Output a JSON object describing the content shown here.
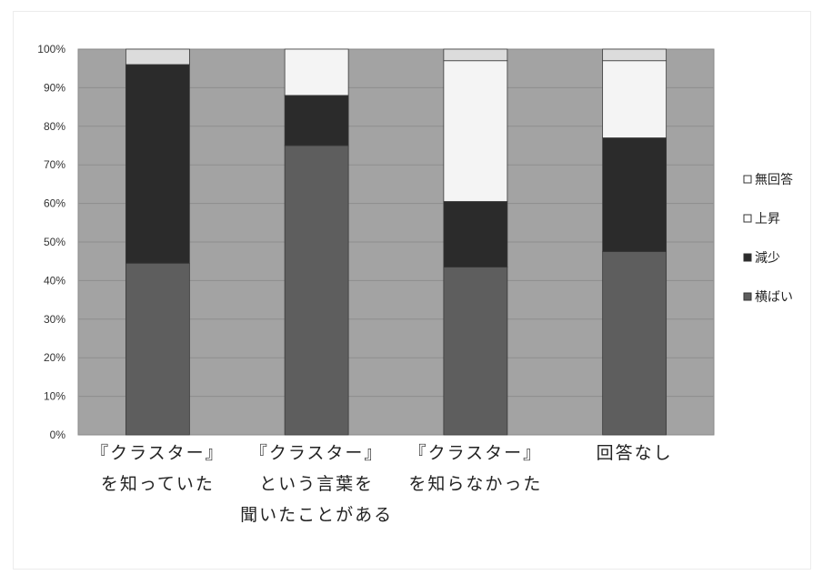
{
  "chart_data": {
    "type": "bar",
    "stacked": true,
    "categories": [
      [
        "『クラスター』",
        "を知っていた"
      ],
      [
        "『クラスター』",
        "という言葉を",
        "聞いたことがある"
      ],
      [
        "『クラスター』",
        "を知らなかった"
      ],
      [
        "回答なし"
      ]
    ],
    "series": [
      {
        "name": "横ばい",
        "color": "#5e5e5e",
        "values": [
          44.5,
          75.0,
          43.5,
          47.5
        ]
      },
      {
        "name": "減少",
        "color": "#2b2b2b",
        "values": [
          51.5,
          13.0,
          17.0,
          29.5
        ]
      },
      {
        "name": "上昇",
        "color": "#f4f4f4",
        "values": [
          0,
          12.0,
          36.5,
          20.0
        ]
      },
      {
        "name": "無回答",
        "color": "#dcdcdc",
        "values": [
          4.0,
          0,
          3.0,
          3.0
        ]
      }
    ],
    "yticks": [
      "0%",
      "10%",
      "20%",
      "30%",
      "40%",
      "50%",
      "60%",
      "70%",
      "80%",
      "90%",
      "100%"
    ],
    "ylim": [
      0,
      100
    ],
    "grid": true,
    "legend": "right",
    "legend_order": [
      "無回答",
      "上昇",
      "減少",
      "横ばい"
    ],
    "plot_background": "#a3a3a3"
  }
}
